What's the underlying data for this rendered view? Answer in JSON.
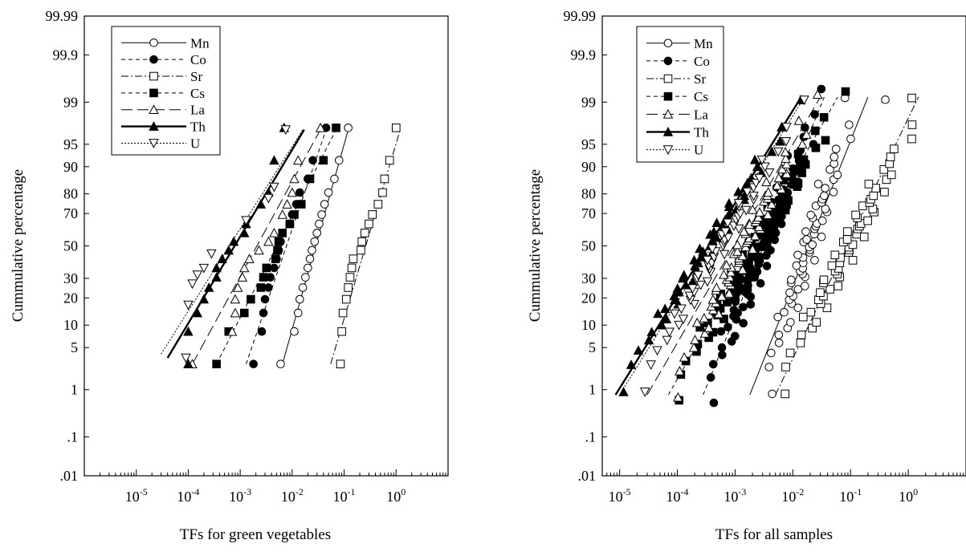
{
  "chart_data": [
    {
      "type": "scatter",
      "title": "",
      "xlabel": "TFs for green vegetables",
      "ylabel": "Cummulative percentage",
      "x_scale": "log",
      "y_scale": "probability",
      "xlim": [
        1e-06,
        10
      ],
      "ylim": [
        0.01,
        99.99
      ],
      "x_ticks": [
        {
          "value": 1e-05,
          "base": "10",
          "exp": "-5"
        },
        {
          "value": 0.0001,
          "base": "10",
          "exp": "-4"
        },
        {
          "value": 0.001,
          "base": "10",
          "exp": "-3"
        },
        {
          "value": 0.01,
          "base": "10",
          "exp": "-2"
        },
        {
          "value": 0.1,
          "base": "10",
          "exp": "-1"
        },
        {
          "value": 1,
          "base": "10",
          "exp": "0"
        }
      ],
      "y_ticks": [
        {
          "value": 0.01,
          "label": ".01"
        },
        {
          "value": 0.1,
          "label": ".1"
        },
        {
          "value": 1,
          "label": "1"
        },
        {
          "value": 5,
          "label": "5"
        },
        {
          "value": 10,
          "label": "10"
        },
        {
          "value": 20,
          "label": "20"
        },
        {
          "value": 30,
          "label": "30"
        },
        {
          "value": 50,
          "label": "50"
        },
        {
          "value": 70,
          "label": "70"
        },
        {
          "value": 80,
          "label": "80"
        },
        {
          "value": 90,
          "label": "90"
        },
        {
          "value": 95,
          "label": "95"
        },
        {
          "value": 99,
          "label": "99"
        },
        {
          "value": 99.9,
          "label": "99.9"
        },
        {
          "value": 99.99,
          "label": "99.99"
        }
      ],
      "legend_position": "top-left",
      "series": [
        {
          "name": "Mn",
          "marker": "circle-open",
          "line": "solid",
          "fit": [
            [
              0.0065,
              2.8
            ],
            [
              0.12,
              97.0
            ]
          ],
          "points": [
            [
              0.006,
              2.8
            ],
            [
              0.011,
              8.3
            ],
            [
              0.013,
              13.9
            ],
            [
              0.014,
              19.4
            ],
            [
              0.016,
              25.0
            ],
            [
              0.018,
              30.6
            ],
            [
              0.02,
              36.1
            ],
            [
              0.022,
              41.7
            ],
            [
              0.024,
              47.2
            ],
            [
              0.027,
              52.8
            ],
            [
              0.03,
              58.3
            ],
            [
              0.033,
              63.9
            ],
            [
              0.037,
              69.4
            ],
            [
              0.042,
              75.0
            ],
            [
              0.05,
              80.6
            ],
            [
              0.065,
              86.1
            ],
            [
              0.08,
              91.7
            ],
            [
              0.12,
              97.2
            ]
          ]
        },
        {
          "name": "Co",
          "marker": "circle-filled",
          "line": "dash",
          "fit": [
            [
              0.0013,
              2.8
            ],
            [
              0.045,
              97.0
            ]
          ],
          "points": [
            [
              0.0018,
              2.8
            ],
            [
              0.0026,
              8.3
            ],
            [
              0.0028,
              13.9
            ],
            [
              0.003,
              19.4
            ],
            [
              0.0035,
              25.0
            ],
            [
              0.0038,
              30.6
            ],
            [
              0.0045,
              36.1
            ],
            [
              0.005,
              41.7
            ],
            [
              0.0055,
              47.2
            ],
            [
              0.006,
              52.8
            ],
            [
              0.0065,
              58.3
            ],
            [
              0.009,
              63.9
            ],
            [
              0.01,
              69.4
            ],
            [
              0.012,
              75.0
            ],
            [
              0.014,
              80.6
            ],
            [
              0.02,
              86.1
            ],
            [
              0.025,
              91.7
            ],
            [
              0.045,
              97.2
            ]
          ]
        },
        {
          "name": "Sr",
          "marker": "square-open",
          "line": "dashdot",
          "fit": [
            [
              0.055,
              2.8
            ],
            [
              1.2,
              97.0
            ]
          ],
          "points": [
            [
              0.085,
              2.8
            ],
            [
              0.09,
              8.3
            ],
            [
              0.095,
              13.9
            ],
            [
              0.11,
              19.4
            ],
            [
              0.12,
              25.0
            ],
            [
              0.13,
              30.6
            ],
            [
              0.14,
              36.1
            ],
            [
              0.15,
              41.7
            ],
            [
              0.21,
              47.2
            ],
            [
              0.22,
              52.8
            ],
            [
              0.25,
              58.3
            ],
            [
              0.3,
              63.9
            ],
            [
              0.35,
              69.4
            ],
            [
              0.45,
              75.0
            ],
            [
              0.55,
              80.6
            ],
            [
              0.6,
              86.1
            ],
            [
              0.75,
              91.7
            ],
            [
              1.0,
              97.2
            ]
          ]
        },
        {
          "name": "Cs",
          "marker": "square-filled",
          "line": "dash",
          "fit": [
            [
              0.00035,
              2.8
            ],
            [
              0.07,
              97.0
            ]
          ],
          "points": [
            [
              0.00035,
              2.8
            ],
            [
              0.0006,
              8.3
            ],
            [
              0.0012,
              13.9
            ],
            [
              0.0016,
              19.4
            ],
            [
              0.0025,
              25.0
            ],
            [
              0.0028,
              30.6
            ],
            [
              0.0032,
              36.1
            ],
            [
              0.0048,
              41.7
            ],
            [
              0.0052,
              47.2
            ],
            [
              0.0055,
              52.8
            ],
            [
              0.0065,
              58.3
            ],
            [
              0.009,
              63.9
            ],
            [
              0.011,
              69.4
            ],
            [
              0.015,
              75.0
            ],
            [
              0.022,
              86.1
            ],
            [
              0.04,
              91.7
            ],
            [
              0.07,
              97.2
            ]
          ]
        },
        {
          "name": "La",
          "marker": "triangle-up-open",
          "line": "longdash",
          "fit": [
            [
              0.00012,
              2.8
            ],
            [
              0.035,
              97.0
            ]
          ],
          "points": [
            [
              0.00012,
              2.8
            ],
            [
              0.0007,
              8.3
            ],
            [
              0.0008,
              13.9
            ],
            [
              0.0008,
              19.4
            ],
            [
              0.0009,
              25.0
            ],
            [
              0.0011,
              30.6
            ],
            [
              0.0012,
              36.1
            ],
            [
              0.0015,
              41.7
            ],
            [
              0.0023,
              47.2
            ],
            [
              0.0035,
              52.8
            ],
            [
              0.0045,
              58.3
            ],
            [
              0.0065,
              69.4
            ],
            [
              0.008,
              75.0
            ],
            [
              0.01,
              80.6
            ],
            [
              0.011,
              86.1
            ],
            [
              0.013,
              91.7
            ],
            [
              0.035,
              97.2
            ]
          ]
        },
        {
          "name": "Th",
          "marker": "triangle-up-filled",
          "line": "solid-thick",
          "fit": [
            [
              4e-05,
              3.5
            ],
            [
              0.017,
              97.0
            ]
          ],
          "points": [
            [
              0.0001,
              2.8
            ],
            [
              0.0001,
              8.3
            ],
            [
              0.00015,
              13.9
            ],
            [
              0.0002,
              19.4
            ],
            [
              0.00025,
              25.0
            ],
            [
              0.00035,
              30.6
            ],
            [
              0.00035,
              36.1
            ],
            [
              0.00045,
              41.7
            ],
            [
              0.0006,
              47.2
            ],
            [
              0.00075,
              52.8
            ],
            [
              0.0012,
              58.3
            ],
            [
              0.0013,
              63.9
            ],
            [
              0.0025,
              75.0
            ],
            [
              0.0035,
              80.6
            ],
            [
              0.0045,
              91.7
            ],
            [
              0.007,
              97.2
            ]
          ]
        },
        {
          "name": "U",
          "marker": "triangle-down-open",
          "line": "dot",
          "fit": [
            [
              3e-05,
              4.0
            ],
            [
              0.016,
              97.0
            ]
          ],
          "points": [
            [
              9e-05,
              3.5
            ],
            [
              0.0001,
              17.0
            ],
            [
              0.00012,
              27.0
            ],
            [
              0.00015,
              32.0
            ],
            [
              0.0002,
              36.0
            ],
            [
              0.00028,
              45.0
            ],
            [
              0.0013,
              66.0
            ],
            [
              0.0035,
              78.0
            ],
            [
              0.0045,
              83.0
            ],
            [
              0.0075,
              97.0
            ]
          ]
        }
      ]
    },
    {
      "type": "scatter",
      "title": "",
      "xlabel": "TFs for all samples",
      "ylabel": "Cummulative percentage",
      "x_scale": "log",
      "y_scale": "probability",
      "xlim": [
        5e-06,
        10
      ],
      "ylim": [
        0.01,
        99.99
      ],
      "x_ticks": [
        {
          "value": 1e-05,
          "base": "10",
          "exp": "-5"
        },
        {
          "value": 0.0001,
          "base": "10",
          "exp": "-4"
        },
        {
          "value": 0.001,
          "base": "10",
          "exp": "-3"
        },
        {
          "value": 0.01,
          "base": "10",
          "exp": "-2"
        },
        {
          "value": 0.1,
          "base": "10",
          "exp": "-1"
        },
        {
          "value": 1,
          "base": "10",
          "exp": "0"
        }
      ],
      "y_ticks": [
        {
          "value": 0.01,
          "label": ".01"
        },
        {
          "value": 0.1,
          "label": ".1"
        },
        {
          "value": 1,
          "label": "1"
        },
        {
          "value": 5,
          "label": "5"
        },
        {
          "value": 10,
          "label": "10"
        },
        {
          "value": 20,
          "label": "20"
        },
        {
          "value": 30,
          "label": "30"
        },
        {
          "value": 50,
          "label": "50"
        },
        {
          "value": 70,
          "label": "70"
        },
        {
          "value": 80,
          "label": "80"
        },
        {
          "value": 90,
          "label": "90"
        },
        {
          "value": 95,
          "label": "95"
        },
        {
          "value": 99,
          "label": "99"
        },
        {
          "value": 99.9,
          "label": "99.9"
        },
        {
          "value": 99.99,
          "label": "99.99"
        }
      ],
      "legend_position": "top-left",
      "series": [
        {
          "name": "Mn",
          "marker": "circle-open",
          "line": "solid",
          "fit": [
            [
              0.0018,
              0.8
            ],
            [
              0.2,
              99.2
            ]
          ],
          "gen": {
            "n": 60,
            "x0": 0.003,
            "x1": 0.12,
            "wob": 0.18,
            "extra": [
              [
                0.4,
                99.1
              ]
            ]
          }
        },
        {
          "name": "Co",
          "marker": "circle-filled",
          "line": "dash",
          "fit": [
            [
              0.00028,
              0.8
            ],
            [
              0.035,
              99.2
            ]
          ],
          "gen": {
            "n": 90,
            "x0": 0.00028,
            "x1": 0.035,
            "wob": 0.2,
            "extra": []
          }
        },
        {
          "name": "Sr",
          "marker": "square-open",
          "line": "dashdot",
          "fit": [
            [
              0.005,
              0.8
            ],
            [
              1.5,
              99.2
            ]
          ],
          "gen": {
            "n": 60,
            "x0": 0.0048,
            "x1": 1.8,
            "wob": 0.2,
            "extra": []
          }
        },
        {
          "name": "Cs",
          "marker": "square-filled",
          "line": "dash",
          "fit": [
            [
              7e-05,
              0.8
            ],
            [
              0.06,
              99.2
            ]
          ],
          "gen": {
            "n": 80,
            "x0": 7e-05,
            "x1": 0.075,
            "wob": 0.2,
            "extra": []
          }
        },
        {
          "name": "La",
          "marker": "triangle-up-open",
          "line": "longdash",
          "fit": [
            [
              3e-05,
              0.8
            ],
            [
              0.03,
              99.2
            ]
          ],
          "gen": {
            "n": 70,
            "x0": 7e-05,
            "x1": 0.03,
            "wob": 0.18,
            "extra": []
          }
        },
        {
          "name": "Th",
          "marker": "triangle-up-filled",
          "line": "solid-thick",
          "fit": [
            [
              8.5e-06,
              0.8
            ],
            [
              0.014,
              99.2
            ]
          ],
          "gen": {
            "n": 55,
            "x0": 8.5e-06,
            "x1": 0.014,
            "wob": 0.15,
            "extra": []
          }
        },
        {
          "name": "U",
          "marker": "triangle-down-open",
          "line": "dot",
          "fit": [
            [
              1e-05,
              0.8
            ],
            [
              0.016,
              99.2
            ]
          ],
          "gen": {
            "n": 55,
            "x0": 2e-05,
            "x1": 0.016,
            "wob": 0.15,
            "extra": []
          }
        }
      ]
    }
  ]
}
